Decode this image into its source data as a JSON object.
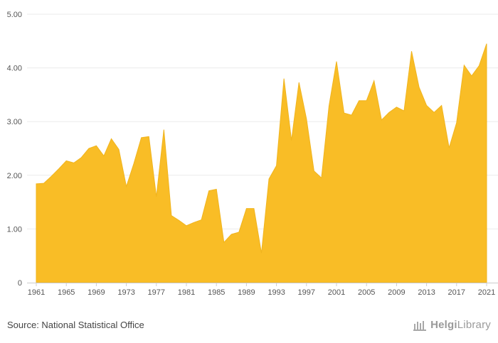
{
  "chart_data": {
    "type": "area",
    "x": [
      1961,
      1962,
      1963,
      1964,
      1965,
      1966,
      1967,
      1968,
      1969,
      1970,
      1971,
      1972,
      1973,
      1974,
      1975,
      1976,
      1977,
      1978,
      1979,
      1980,
      1981,
      1982,
      1983,
      1984,
      1985,
      1986,
      1987,
      1988,
      1989,
      1990,
      1991,
      1992,
      1993,
      1994,
      1995,
      1996,
      1997,
      1998,
      1999,
      2000,
      2001,
      2002,
      2003,
      2004,
      2005,
      2006,
      2007,
      2008,
      2009,
      2010,
      2011,
      2012,
      2013,
      2014,
      2015,
      2016,
      2017,
      2018,
      2019,
      2020,
      2021
    ],
    "values": [
      1.84,
      1.85,
      1.98,
      2.12,
      2.27,
      2.23,
      2.33,
      2.5,
      2.55,
      2.36,
      2.68,
      2.48,
      1.79,
      2.22,
      2.7,
      2.72,
      1.6,
      2.85,
      1.25,
      1.16,
      1.06,
      1.12,
      1.17,
      1.71,
      1.74,
      0.75,
      0.9,
      0.94,
      1.38,
      1.38,
      0.55,
      1.93,
      2.18,
      3.8,
      2.65,
      3.73,
      3.05,
      2.08,
      1.95,
      3.29,
      4.12,
      3.16,
      3.12,
      3.39,
      3.39,
      3.76,
      3.03,
      3.17,
      3.27,
      3.2,
      4.31,
      3.64,
      3.3,
      3.17,
      3.3,
      2.51,
      2.98,
      4.05,
      3.85,
      4.04,
      4.45
    ],
    "y_ticks": [
      "0",
      "1.00",
      "2.00",
      "3.00",
      "4.00",
      "5.00"
    ],
    "x_tick_labels": [
      "1961",
      "1965",
      "1969",
      "1973",
      "1977",
      "1981",
      "1985",
      "1989",
      "1993",
      "1997",
      "2001",
      "2005",
      "2009",
      "2013",
      "2017",
      "2021"
    ],
    "ylim": [
      0,
      5
    ],
    "grid": true,
    "fill_color": "#F9BD26",
    "line_color": "#F0B41E",
    "title": "",
    "xlabel": "",
    "ylabel": ""
  },
  "footer": {
    "source": "Source: National Statistical Office",
    "brand_first": "Helgi",
    "brand_second": "Library"
  },
  "colors": {
    "grid": "#ebebeb",
    "axis": "#cccccc",
    "brand": "#9a9a9a"
  }
}
